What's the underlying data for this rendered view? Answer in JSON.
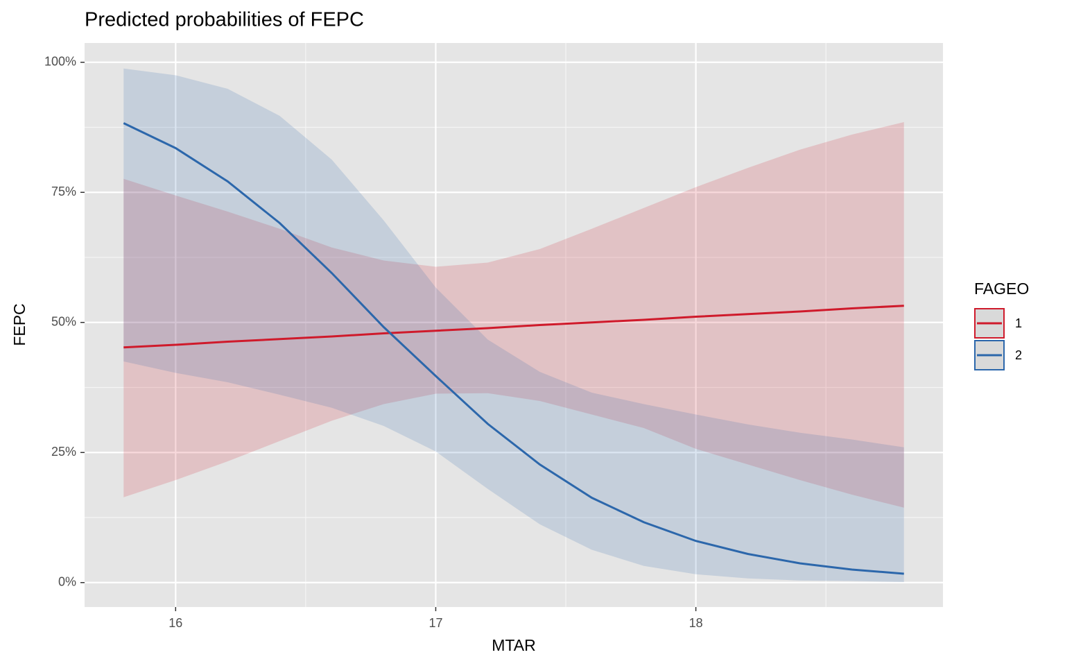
{
  "chart_data": {
    "type": "line",
    "title": "Predicted probabilities of FEPC",
    "x_label": "MTAR",
    "y_label": "FEPC",
    "legend_title": "FAGEO",
    "legend_position": "right",
    "grid": true,
    "x": [
      15.8,
      16.0,
      16.2,
      16.4,
      16.6,
      16.8,
      17.0,
      17.2,
      17.4,
      17.6,
      17.8,
      18.0,
      18.2,
      18.4,
      18.6,
      18.8
    ],
    "xlim": [
      15.65,
      18.95
    ],
    "xticks": [
      16,
      17,
      18
    ],
    "xminor_ticks": [
      16.5,
      17.5,
      18.5
    ],
    "ylim": [
      -4.7,
      103.7
    ],
    "yticks": [
      {
        "value": 0,
        "label": "0%"
      },
      {
        "value": 25,
        "label": "25%"
      },
      {
        "value": 50,
        "label": "50%"
      },
      {
        "value": 75,
        "label": "75%"
      },
      {
        "value": 100,
        "label": "100%"
      }
    ],
    "yminor_ticks": [
      12.5,
      37.5,
      62.5,
      87.5
    ],
    "series": [
      {
        "name": "1",
        "color": "#cf1a2b",
        "values": [
          45.2,
          45.7,
          46.3,
          46.8,
          47.3,
          47.9,
          48.4,
          48.9,
          49.5,
          50.0,
          50.5,
          51.1,
          51.6,
          52.1,
          52.7,
          53.2
        ],
        "lower": [
          16.4,
          19.7,
          23.3,
          27.2,
          31.1,
          34.3,
          36.3,
          36.4,
          34.9,
          32.3,
          29.7,
          25.7,
          22.7,
          19.7,
          16.9,
          14.4
        ],
        "upper": [
          77.6,
          74.4,
          71.3,
          68.0,
          64.4,
          61.9,
          60.7,
          61.5,
          64.1,
          68.0,
          72.0,
          76.0,
          79.7,
          83.2,
          86.1,
          88.5
        ]
      },
      {
        "name": "2",
        "color": "#2c67ab",
        "values": [
          88.3,
          83.5,
          77.1,
          69.1,
          59.5,
          49.1,
          39.7,
          30.5,
          22.7,
          16.3,
          11.6,
          8.0,
          5.5,
          3.7,
          2.5,
          1.7
        ],
        "lower": [
          42.5,
          40.3,
          38.5,
          36.1,
          33.6,
          30.1,
          25.2,
          18.0,
          11.2,
          6.3,
          3.2,
          1.6,
          0.8,
          0.4,
          0.3,
          0.1
        ],
        "upper": [
          98.8,
          97.5,
          94.9,
          89.7,
          81.3,
          69.6,
          56.7,
          46.7,
          40.5,
          36.5,
          34.3,
          32.3,
          30.4,
          28.8,
          27.5,
          26.0
        ]
      }
    ]
  }
}
